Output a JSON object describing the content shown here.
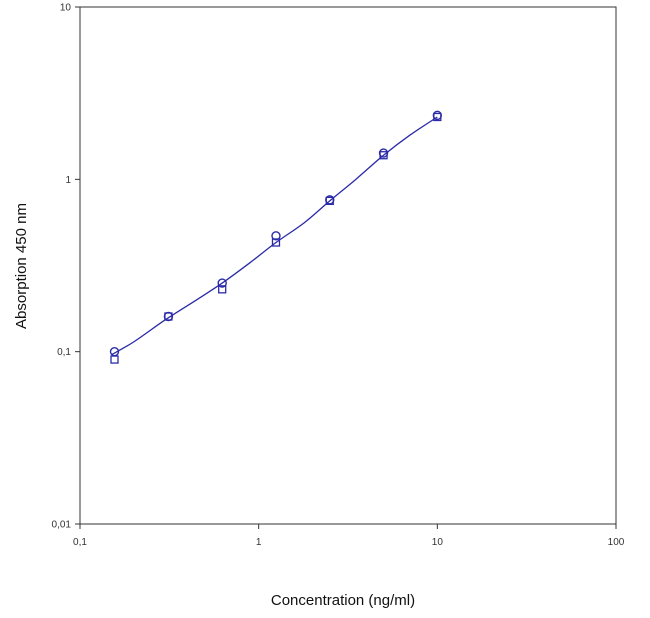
{
  "chart_data": {
    "type": "scatter",
    "title": "",
    "xlabel": "Concentration (ng/ml)",
    "ylabel": "Absorption 450 nm",
    "x_scale": "log",
    "y_scale": "log",
    "xlim": [
      0.1,
      100
    ],
    "ylim": [
      0.01,
      10
    ],
    "x_tick_values": [
      0.1,
      1,
      10,
      100
    ],
    "x_tick_labels": [
      "0,1",
      "1",
      "10",
      "100"
    ],
    "y_tick_values": [
      0.01,
      0.1,
      1,
      10
    ],
    "y_tick_labels": [
      "0,01",
      "0,1",
      "1",
      "10"
    ],
    "grid": false,
    "legend": "none",
    "series": [
      {
        "marker": "circle",
        "x": [
          0.156,
          0.3125,
          0.625,
          1.25,
          2.5,
          5,
          10
        ],
        "y": [
          0.1,
          0.16,
          0.25,
          0.47,
          0.76,
          1.42,
          2.35
        ]
      },
      {
        "marker": "square",
        "x": [
          0.156,
          0.3125,
          0.625,
          1.25,
          2.5,
          5,
          10
        ],
        "y": [
          0.09,
          0.16,
          0.23,
          0.43,
          0.75,
          1.38,
          2.3
        ]
      },
      {
        "marker": "none",
        "line": "fitted-curve",
        "x": [
          0.15,
          0.2,
          0.3,
          0.45,
          0.625,
          0.9,
          1.25,
          1.8,
          2.5,
          3.5,
          5,
          7,
          10
        ],
        "y": [
          0.096,
          0.114,
          0.153,
          0.2,
          0.25,
          0.33,
          0.43,
          0.56,
          0.75,
          1.0,
          1.38,
          1.8,
          2.3
        ]
      }
    ],
    "colors": {
      "series": "#2a2aa8",
      "axis": "#333333"
    }
  }
}
